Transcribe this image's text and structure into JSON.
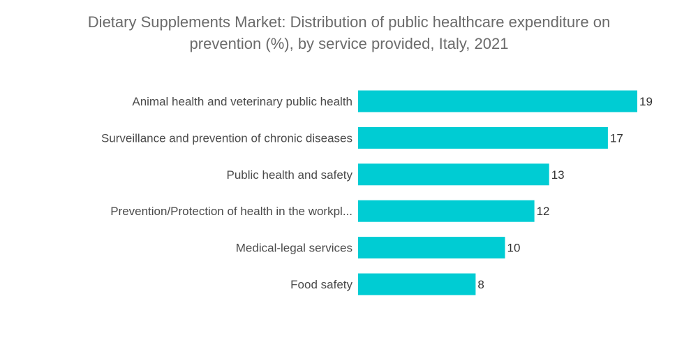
{
  "title_lines": [
    "Dietary Supplements Market: Distribution of public healthcare expenditure on",
    "prevention (%), by service provided, Italy, 2021"
  ],
  "colors": {
    "bar": "#00ccd3",
    "title": "#6b6b6b",
    "label": "#4a4a4a"
  },
  "chart_data": {
    "type": "bar",
    "orientation": "horizontal",
    "title": "Dietary Supplements Market: Distribution of public healthcare expenditure on prevention (%), by service provided, Italy, 2021",
    "categories": [
      "Animal health and veterinary public health",
      "Surveillance and prevention of chronic diseases",
      "Public health and safety",
      "Prevention/Protection of health in the workpl...",
      "Medical-legal services",
      "Food safety"
    ],
    "values": [
      19,
      17,
      13,
      12,
      10,
      8
    ],
    "data_labels": [
      "19",
      "17",
      "13",
      "12",
      "10",
      "8"
    ],
    "xlabel": "",
    "ylabel": "",
    "xlim": [
      0,
      19
    ],
    "grid": false,
    "legend": "none"
  }
}
